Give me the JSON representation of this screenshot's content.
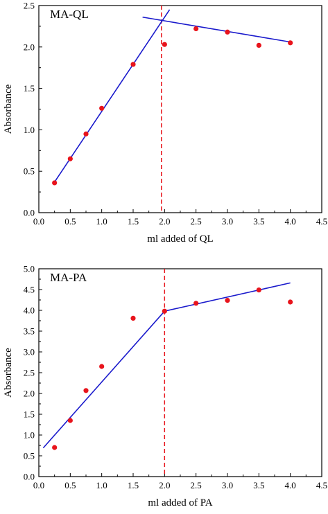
{
  "chart_data": [
    {
      "type": "scatter",
      "title": "MA-QL",
      "xlabel": "ml added of QL",
      "ylabel": "Absorbance",
      "xlim": [
        0.0,
        4.5
      ],
      "ylim": [
        0.0,
        2.5
      ],
      "xticks": [
        "0.0",
        "0.5",
        "1.0",
        "1.5",
        "2.0",
        "2.5",
        "3.0",
        "3.5",
        "4.0",
        "4.5"
      ],
      "yticks": [
        "0.0",
        "0.5",
        "1.0",
        "1.5",
        "2.0",
        "2.5"
      ],
      "points": {
        "x": [
          0.25,
          0.5,
          0.75,
          1.0,
          1.5,
          2.0,
          2.5,
          3.0,
          3.5,
          4.0
        ],
        "y": [
          0.36,
          0.65,
          0.95,
          1.26,
          1.79,
          2.03,
          2.22,
          2.18,
          2.02,
          2.05
        ]
      },
      "fit_lines": [
        {
          "x": [
            0.25,
            2.08
          ],
          "y": [
            0.37,
            2.45
          ]
        },
        {
          "x": [
            1.65,
            4.0
          ],
          "y": [
            2.36,
            2.06
          ]
        }
      ],
      "reference_line_x": 1.95,
      "grid": false,
      "colors": {
        "points": "#e8141c",
        "fit": "#1a1acc",
        "reference": "#e8141c"
      }
    },
    {
      "type": "scatter",
      "title": "MA-PA",
      "xlabel": "ml added of PA",
      "ylabel": "Absorbance",
      "xlim": [
        0.0,
        4.5
      ],
      "ylim": [
        0.0,
        5.0
      ],
      "xticks": [
        "0.0",
        "0.5",
        "1.0",
        "1.5",
        "2.0",
        "2.5",
        "3.0",
        "3.5",
        "4.0",
        "4.5"
      ],
      "yticks": [
        "0.0",
        "0.5",
        "1.0",
        "1.5",
        "2.0",
        "2.5",
        "3.0",
        "3.5",
        "4.0",
        "4.5",
        "5.0"
      ],
      "points": {
        "x": [
          0.25,
          0.5,
          0.75,
          1.0,
          1.5,
          2.0,
          2.5,
          3.0,
          3.5,
          4.0
        ],
        "y": [
          0.7,
          1.35,
          2.07,
          2.65,
          3.81,
          3.98,
          4.17,
          4.24,
          4.49,
          4.2
        ]
      },
      "fit_lines": [
        {
          "x": [
            0.07,
            2.0
          ],
          "y": [
            0.69,
            3.98
          ]
        },
        {
          "x": [
            2.0,
            4.0
          ],
          "y": [
            3.98,
            4.66
          ]
        }
      ],
      "reference_line_x": 2.0,
      "grid": false,
      "colors": {
        "points": "#e8141c",
        "fit": "#1a1acc",
        "reference": "#e8141c"
      }
    }
  ]
}
